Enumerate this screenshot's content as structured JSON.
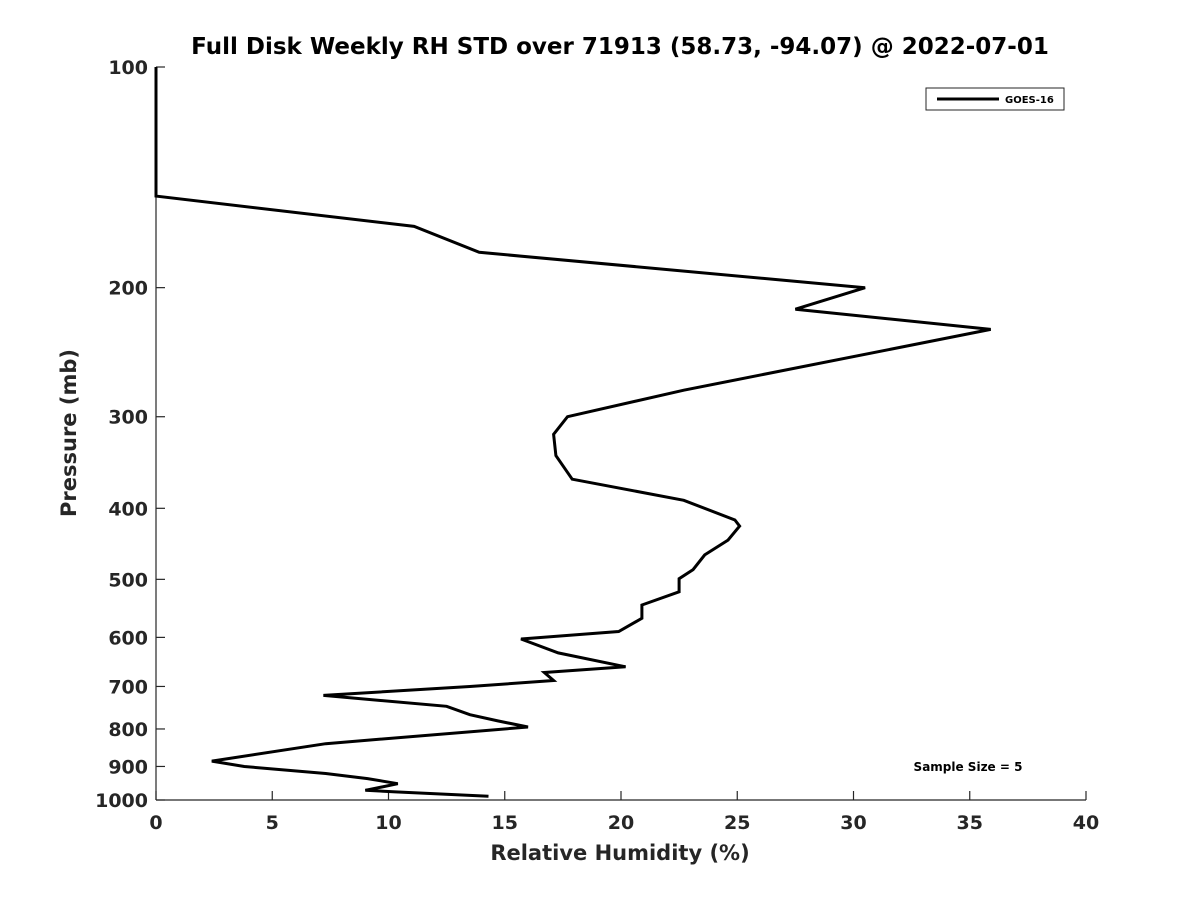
{
  "chart_data": {
    "type": "line",
    "title": "Full Disk Weekly RH STD over 71913 (58.73, -94.07) @ 2022-07-01",
    "xlabel": "Relative Humidity (%)",
    "ylabel": "Pressure (mb)",
    "xlim": [
      0,
      40
    ],
    "ylim": [
      100,
      1000
    ],
    "yscale": "log",
    "y_reversed": true,
    "x_ticks": [
      0,
      5,
      10,
      15,
      20,
      25,
      30,
      35,
      40
    ],
    "y_ticks": [
      100,
      200,
      300,
      400,
      500,
      600,
      700,
      800,
      900,
      1000
    ],
    "grid": false,
    "legend_position": "top-right",
    "annotation": "Sample Size = 5",
    "series": [
      {
        "name": "GOES-16",
        "color": "#000000",
        "points": [
          [
            0,
            100
          ],
          [
            0,
            110
          ],
          [
            0,
            120
          ],
          [
            0,
            135
          ],
          [
            0,
            150
          ],
          [
            11.1,
            165
          ],
          [
            13.9,
            179
          ],
          [
            30.5,
            200
          ],
          [
            27.5,
            214
          ],
          [
            35.9,
            228
          ],
          [
            22.7,
            276
          ],
          [
            17.7,
            300
          ],
          [
            17.1,
            317
          ],
          [
            17.2,
            339
          ],
          [
            17.9,
            365
          ],
          [
            22.7,
            390
          ],
          [
            24.9,
            415
          ],
          [
            25.1,
            423
          ],
          [
            24.6,
            442
          ],
          [
            23.6,
            463
          ],
          [
            23.1,
            485
          ],
          [
            22.5,
            499
          ],
          [
            22.5,
            520
          ],
          [
            20.9,
            542
          ],
          [
            20.9,
            565
          ],
          [
            19.9,
            589
          ],
          [
            15.7,
            603
          ],
          [
            17.3,
            630
          ],
          [
            20.2,
            658
          ],
          [
            16.7,
            670
          ],
          [
            17.1,
            687
          ],
          [
            13.5,
            700
          ],
          [
            7.2,
            720
          ],
          [
            12.5,
            745
          ],
          [
            13.5,
            765
          ],
          [
            14.7,
            780
          ],
          [
            16.0,
            795
          ],
          [
            7.3,
            838
          ],
          [
            2.4,
            885
          ],
          [
            3.8,
            900
          ],
          [
            7.3,
            920
          ],
          [
            9.1,
            935
          ],
          [
            10.4,
            950
          ],
          [
            9.5,
            963
          ],
          [
            9.0,
            970
          ],
          [
            10.3,
            975
          ],
          [
            14.3,
            988
          ]
        ]
      }
    ]
  }
}
